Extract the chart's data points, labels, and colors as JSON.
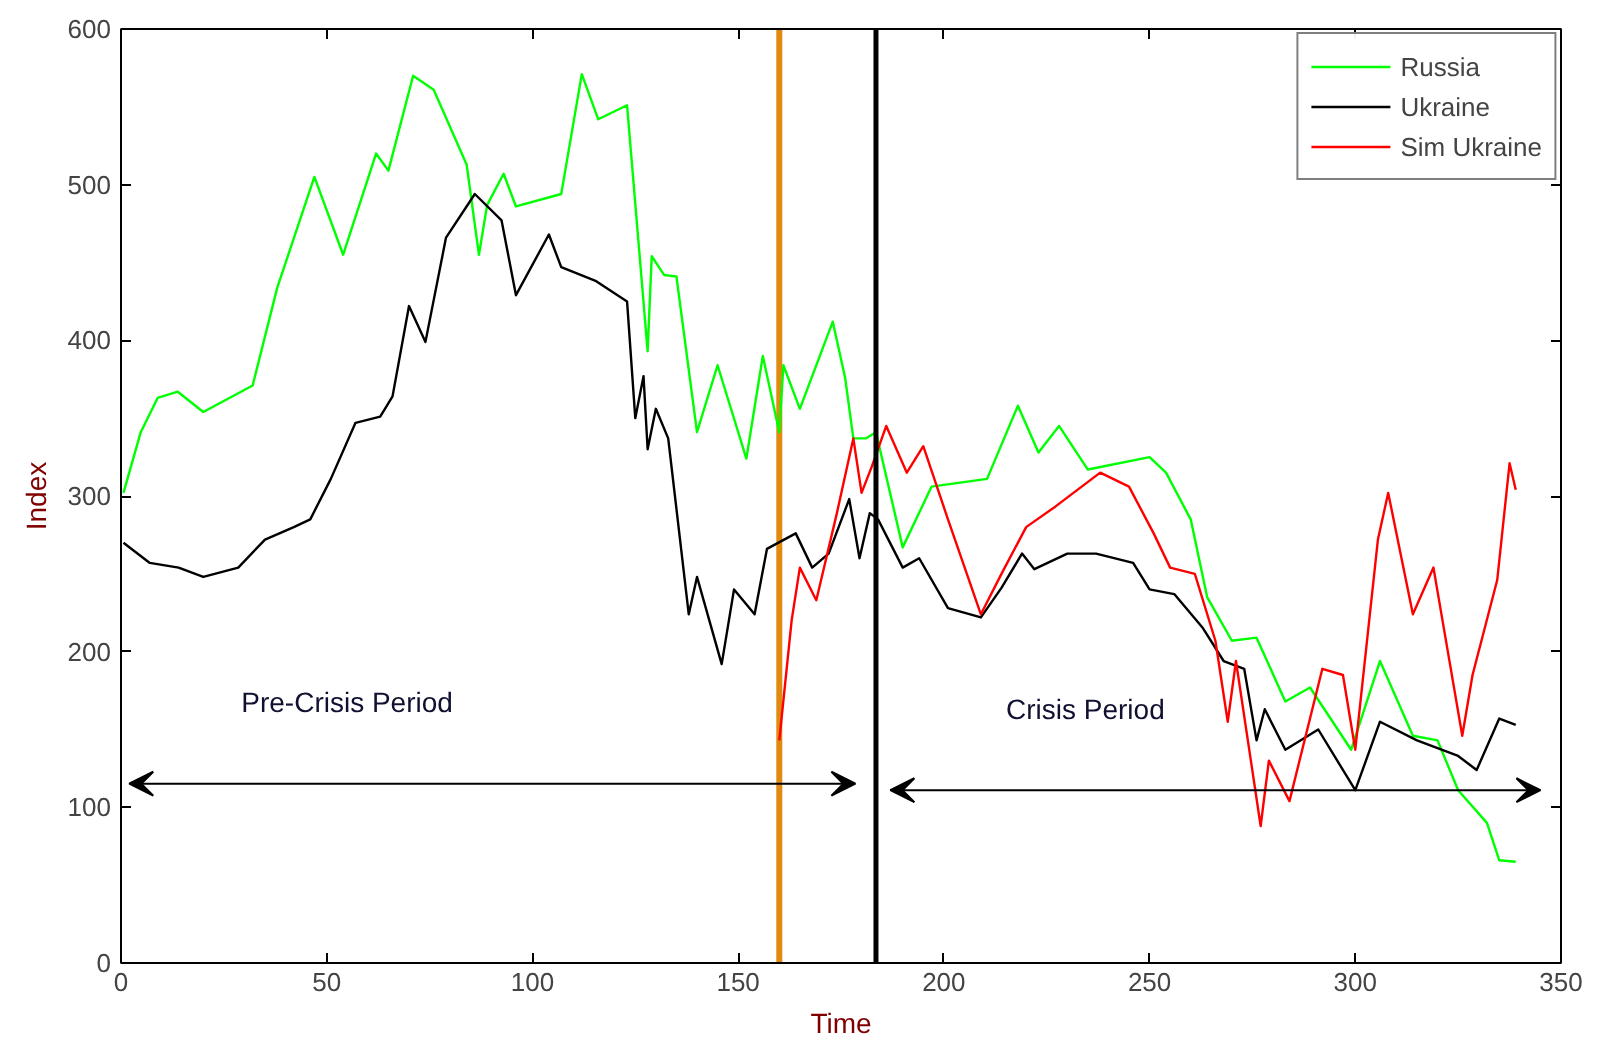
{
  "chart_data": {
    "type": "line",
    "xlabel": "Time",
    "ylabel": "Index",
    "xlim": [
      0,
      350
    ],
    "ylim": [
      0,
      600
    ],
    "xticks": [
      0,
      50,
      100,
      150,
      200,
      250,
      300,
      350
    ],
    "yticks": [
      0,
      100,
      200,
      300,
      400,
      500,
      600
    ],
    "grid": false,
    "legend": "top right",
    "line_style": "solid",
    "marker": "none",
    "series": [
      {
        "name": "Russia",
        "color": "#00ff00",
        "x": [
          0.6,
          4.8,
          8.9,
          13.8,
          20,
          32,
          38,
          47,
          54,
          62,
          65,
          71,
          76,
          84,
          87,
          89,
          93,
          96,
          107,
          112,
          116,
          123,
          128,
          129,
          132,
          135,
          140,
          145,
          152,
          156,
          160,
          161,
          165,
          173,
          176,
          178,
          181,
          183.5,
          190,
          197,
          210.5,
          218,
          223,
          228,
          235,
          250,
          254,
          260,
          264,
          270,
          276,
          283,
          289,
          299,
          306,
          314,
          320,
          325,
          332,
          335,
          339
        ],
        "values": [
          302,
          341,
          363,
          367,
          354,
          371,
          434,
          505,
          455,
          520,
          509,
          570,
          561,
          513,
          455,
          487,
          507,
          486,
          494,
          571,
          542,
          551,
          393,
          454,
          442,
          441,
          341,
          384,
          324,
          390,
          341,
          384,
          356,
          412,
          376,
          337,
          337,
          341,
          267,
          306,
          311,
          358,
          328,
          345,
          317,
          325,
          315,
          285,
          235,
          207,
          209,
          168,
          177,
          137,
          194,
          146,
          143,
          111,
          90,
          66,
          65
        ]
      },
      {
        "name": "Ukraine",
        "color": "#000000",
        "x": [
          0.6,
          7,
          14,
          20,
          28.5,
          35,
          42,
          46,
          51,
          57,
          63,
          66,
          70,
          74,
          79,
          86,
          92.5,
          96,
          104,
          107,
          115.5,
          123,
          125,
          127,
          128,
          130,
          133,
          138,
          140,
          146,
          149,
          154,
          157,
          164,
          168,
          172,
          177,
          179.5,
          182,
          184,
          190,
          194,
          201,
          209,
          214,
          219,
          222,
          230,
          237,
          246,
          250,
          256,
          263,
          268,
          273,
          276,
          278,
          283,
          291,
          300,
          306,
          315,
          325,
          329.5,
          335,
          339
        ],
        "values": [
          270,
          257,
          254,
          248,
          254,
          272,
          280,
          285,
          311,
          347,
          351,
          364,
          422,
          399,
          466,
          494,
          477,
          429,
          468,
          447,
          438,
          425,
          350,
          377,
          330,
          356,
          337,
          224,
          248,
          192,
          240,
          224,
          266,
          276,
          254,
          263,
          298,
          260,
          289,
          285,
          254,
          260,
          228,
          222,
          241,
          263,
          253,
          263,
          263,
          257,
          240,
          237,
          215,
          194,
          189,
          143,
          163,
          137,
          150,
          111,
          155,
          143,
          133,
          124,
          157,
          153
        ]
      },
      {
        "name": "Sim Ukraine",
        "color": "#ff0000",
        "x": [
          160,
          163,
          165,
          169,
          174,
          178,
          180,
          182.5,
          186,
          191,
          195,
          201,
          209,
          214,
          220,
          227,
          238,
          245,
          251,
          255,
          261,
          266,
          269,
          271,
          277,
          279,
          284,
          292,
          297,
          300,
          305.5,
          308,
          314,
          319,
          326,
          328.5,
          334.5,
          337.5,
          339
        ],
        "values": [
          143,
          220,
          254,
          233,
          289,
          337,
          302,
          319,
          345,
          315,
          332,
          285,
          224,
          250,
          280,
          293,
          315,
          306,
          276,
          254,
          250,
          207,
          155,
          194,
          88,
          130,
          104,
          189,
          185,
          137,
          272,
          302,
          224,
          254,
          146,
          185,
          246,
          321,
          304
        ]
      }
    ],
    "ref_lines": [
      {
        "axis": "x",
        "value": 160,
        "color": "#e08a10"
      },
      {
        "axis": "x",
        "value": 183.5,
        "color": "#000000"
      }
    ],
    "annotations": [
      "Pre-Crisis Period",
      "Crisis Period"
    ]
  }
}
